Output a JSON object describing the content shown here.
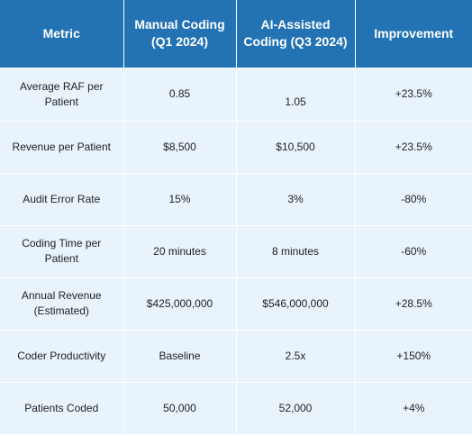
{
  "table": {
    "headers": [
      "Metric",
      "Manual Coding (Q1 2024)",
      "AI-Assisted Coding (Q3 2024)",
      "Improvement"
    ],
    "rows": [
      [
        "Average RAF per Patient",
        "0.85",
        "1.05",
        "+23.5%"
      ],
      [
        "Revenue per Patient",
        "$8,500",
        "$10,500",
        "+23.5%"
      ],
      [
        "Audit Error Rate",
        "15%",
        "3%",
        "-80%"
      ],
      [
        "Coding Time per Patient",
        "20 minutes",
        "8 minutes",
        "-60%"
      ],
      [
        "Annual Revenue (Estimated)",
        "$425,000,000",
        "$546,000,000",
        "+28.5%"
      ],
      [
        "Coder Productivity",
        "Baseline",
        "2.5x",
        "+150%"
      ],
      [
        "Patients Coded",
        "50,000",
        "52,000",
        "+4%"
      ]
    ]
  },
  "colors": {
    "header_bg": "#2272b4",
    "header_text": "#ffffff",
    "cell_bg": "#e9f3fc",
    "cell_text": "#222222"
  }
}
